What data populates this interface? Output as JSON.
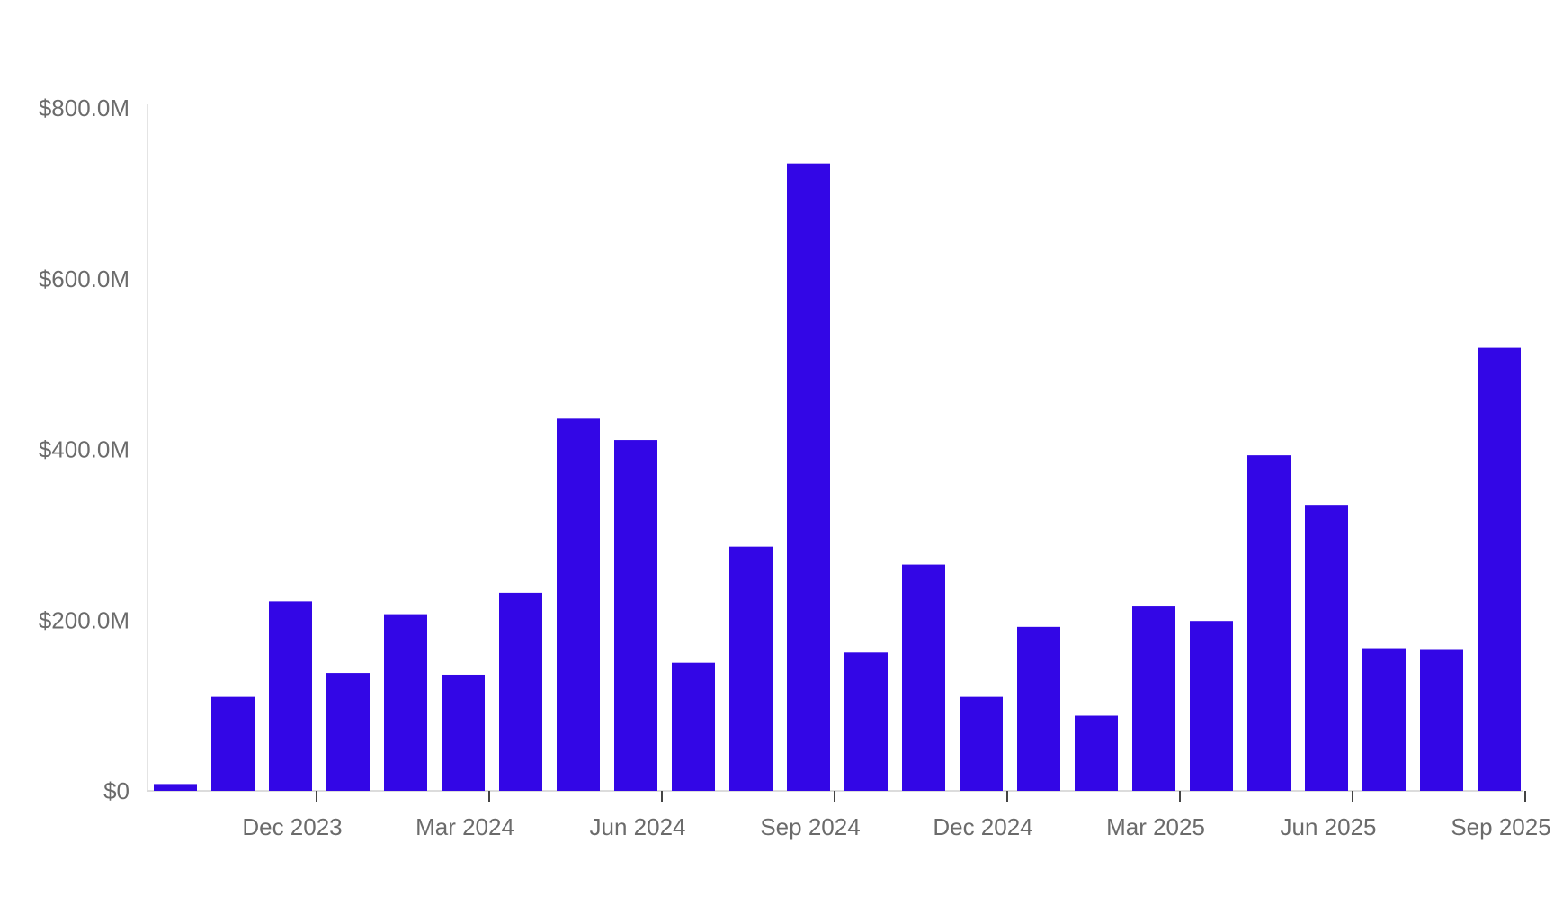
{
  "chart_data": {
    "type": "bar",
    "title": "",
    "xlabel": "",
    "ylabel": "",
    "categories": [
      "Oct 2023",
      "Nov 2023",
      "Dec 2023",
      "Jan 2024",
      "Feb 2024",
      "Mar 2024",
      "Apr 2024",
      "May 2024",
      "Jun 2024",
      "Jul 2024",
      "Aug 2024",
      "Sep 2024",
      "Oct 2024",
      "Nov 2024",
      "Dec 2024",
      "Jan 2025",
      "Feb 2025",
      "Mar 2025",
      "Apr 2025",
      "May 2025",
      "Jun 2025",
      "Jul 2025",
      "Aug 2025",
      "Sep 2025"
    ],
    "values": [
      8,
      110,
      222,
      138,
      207,
      136,
      232,
      436,
      411,
      150,
      286,
      735,
      162,
      265,
      110,
      192,
      88,
      216,
      199,
      393,
      335,
      167,
      166,
      519
    ],
    "value_unit": "$M",
    "ylim": [
      0,
      800
    ],
    "yticks": [
      0,
      200,
      400,
      600,
      800
    ],
    "ytick_labels": [
      "$0",
      "$200.0M",
      "$400.0M",
      "$600.0M",
      "$800.0M"
    ],
    "xtick_labels": [
      {
        "category": "Dec 2023",
        "label": "Dec 2023"
      },
      {
        "category": "Mar 2024",
        "label": "Mar 2024"
      },
      {
        "category": "Jun 2024",
        "label": "Jun 2024"
      },
      {
        "category": "Sep 2024",
        "label": "Sep 2024"
      },
      {
        "category": "Dec 2024",
        "label": "Dec 2024"
      },
      {
        "category": "Mar 2025",
        "label": "Mar 2025"
      },
      {
        "category": "Jun 2025",
        "label": "Jun 2025"
      },
      {
        "category": "Sep 2025",
        "label": "Sep 2025"
      }
    ],
    "grid": false,
    "legend": "none",
    "colors": {
      "bar": "#3306e6",
      "axis": "#dcdcdc",
      "tick_text": "#6b6b6b"
    }
  }
}
